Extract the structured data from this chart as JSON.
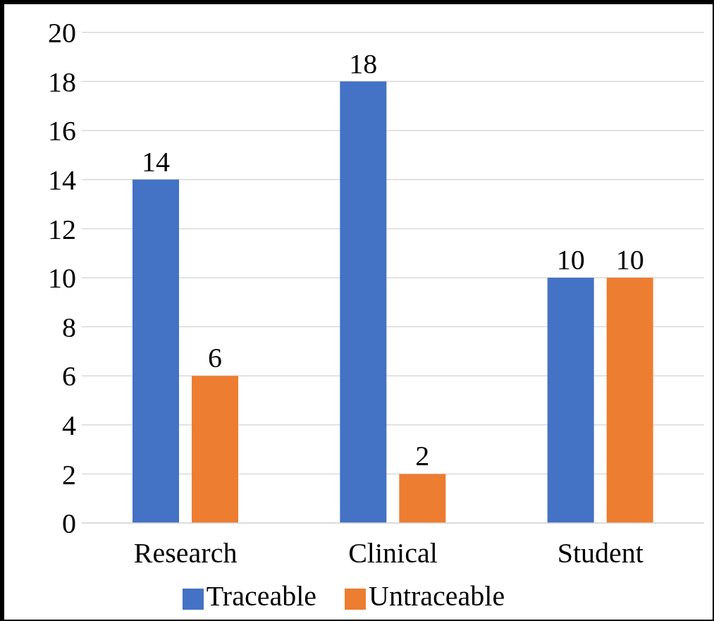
{
  "chart_data": {
    "type": "bar",
    "categories": [
      "Research",
      "Clinical",
      "Student"
    ],
    "series": [
      {
        "name": "Traceable",
        "color": "#4472c4",
        "values": [
          14,
          18,
          10
        ]
      },
      {
        "name": "Untraceable",
        "color": "#ed7d31",
        "values": [
          6,
          2,
          10
        ]
      }
    ],
    "ylim": [
      0,
      20
    ],
    "yticks": [
      0,
      2,
      4,
      6,
      8,
      10,
      12,
      14,
      16,
      18,
      20
    ],
    "grid": "y",
    "legend": "bottom",
    "data_labels": true
  }
}
